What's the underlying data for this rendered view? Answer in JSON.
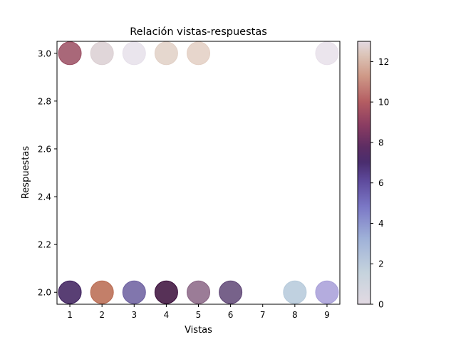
{
  "chart_data": {
    "type": "scatter",
    "title": "Relación vistas-respuestas",
    "xlabel": "Vistas",
    "ylabel": "Respuestas",
    "xlim": [
      0.6,
      9.4
    ],
    "ylim": [
      1.95,
      3.05
    ],
    "xticks": [
      "1",
      "2",
      "3",
      "4",
      "5",
      "6",
      "7",
      "8",
      "9"
    ],
    "yticks": [
      "2.0",
      "2.2",
      "2.4",
      "2.6",
      "2.8",
      "3.0"
    ],
    "colorbar": {
      "colormap": "twilight",
      "range": [
        0,
        13
      ],
      "ticks": [
        "0",
        "2",
        "4",
        "6",
        "8",
        "10",
        "12"
      ]
    },
    "points": [
      {
        "x": 1,
        "y": 2.0,
        "color": "#3c1d5c"
      },
      {
        "x": 1,
        "y": 3.0,
        "color": "#9a4d62"
      },
      {
        "x": 2,
        "y": 2.0,
        "color": "#b8694f"
      },
      {
        "x": 2,
        "y": 3.0,
        "color": "#dbcfd2"
      },
      {
        "x": 3,
        "y": 2.0,
        "color": "#6b5e9f"
      },
      {
        "x": 3,
        "y": 3.0,
        "color": "#e6e0ea"
      },
      {
        "x": 4,
        "y": 2.0,
        "color": "#3a0d3a"
      },
      {
        "x": 4,
        "y": 3.0,
        "color": "#e1d0c6"
      },
      {
        "x": 5,
        "y": 2.0,
        "color": "#8a6585"
      },
      {
        "x": 5,
        "y": 3.0,
        "color": "#e3cfc3"
      },
      {
        "x": 6,
        "y": 2.0,
        "color": "#5f4676"
      },
      {
        "x": 8,
        "y": 2.0,
        "color": "#b5c9da"
      },
      {
        "x": 9,
        "y": 2.0,
        "color": "#a79ed8"
      },
      {
        "x": 9,
        "y": 3.0,
        "color": "#e8e0ea"
      }
    ]
  }
}
